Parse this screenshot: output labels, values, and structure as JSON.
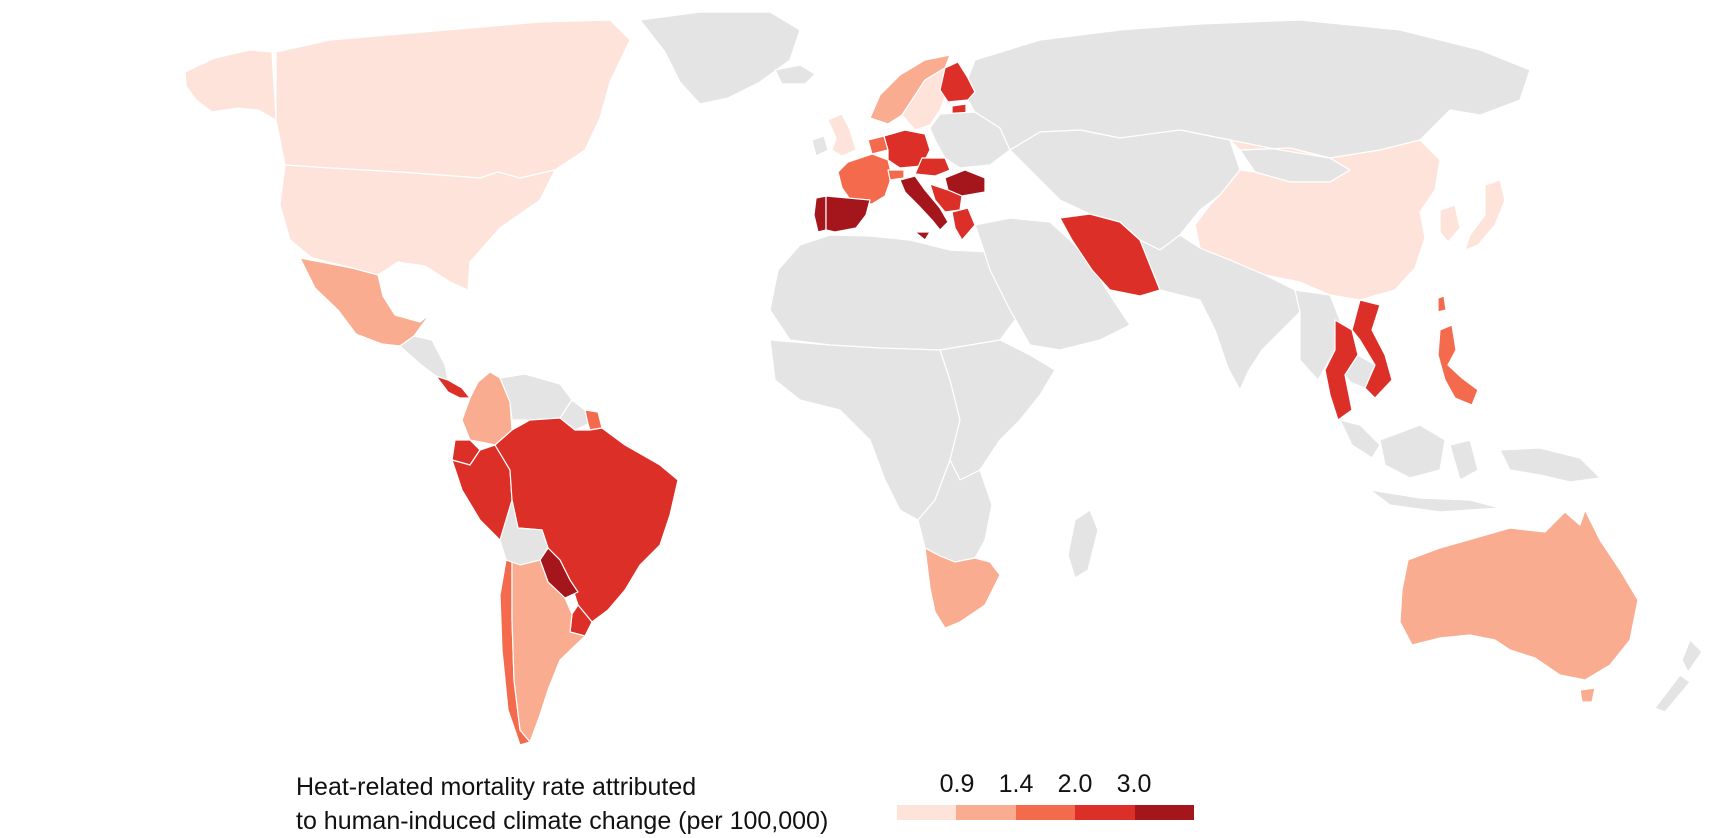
{
  "colors": {
    "no_data": "#e4e4e4",
    "bins": [
      "#fde3da",
      "#f9ac8f",
      "#f46a4d",
      "#dc2f28",
      "#a5151c"
    ]
  },
  "legend": {
    "title_line1": "Heat-related mortality rate attributed",
    "title_line2": "to human-induced climate change (per 100,000)",
    "ticks": [
      "0.9",
      "1.4",
      "2.0",
      "3.0"
    ]
  },
  "regions": [
    {
      "name": "canada",
      "level": 0
    },
    {
      "name": "usa",
      "level": 0
    },
    {
      "name": "alaska",
      "level": 0
    },
    {
      "name": "greenland",
      "level": null
    },
    {
      "name": "mexico",
      "level": 1
    },
    {
      "name": "central-america",
      "level": null
    },
    {
      "name": "costa-rica-panama",
      "level": 3
    },
    {
      "name": "colombia",
      "level": 1
    },
    {
      "name": "venezuela",
      "level": null
    },
    {
      "name": "guyana-suriname",
      "level": null
    },
    {
      "name": "french-guiana",
      "level": 2
    },
    {
      "name": "ecuador",
      "level": 3
    },
    {
      "name": "peru",
      "level": 3
    },
    {
      "name": "brazil",
      "level": 3
    },
    {
      "name": "bolivia",
      "level": null
    },
    {
      "name": "paraguay",
      "level": 4
    },
    {
      "name": "uruguay",
      "level": 3
    },
    {
      "name": "chile",
      "level": 2
    },
    {
      "name": "argentina",
      "level": 1
    },
    {
      "name": "iceland",
      "level": null
    },
    {
      "name": "uk",
      "level": 0
    },
    {
      "name": "ireland",
      "level": null
    },
    {
      "name": "norway",
      "level": 1
    },
    {
      "name": "sweden",
      "level": 0
    },
    {
      "name": "finland",
      "level": 3
    },
    {
      "name": "estonia",
      "level": 3
    },
    {
      "name": "baltic-eastern-europe",
      "level": null
    },
    {
      "name": "russia",
      "level": null
    },
    {
      "name": "germany",
      "level": 3
    },
    {
      "name": "netherlands-belgium",
      "level": 2
    },
    {
      "name": "france",
      "level": 2
    },
    {
      "name": "switzerland",
      "level": 2
    },
    {
      "name": "spain",
      "level": 4
    },
    {
      "name": "portugal",
      "level": 4
    },
    {
      "name": "italy",
      "level": 4
    },
    {
      "name": "czechia-austria",
      "level": 3
    },
    {
      "name": "romania",
      "level": 4
    },
    {
      "name": "serbia-balkans",
      "level": 3
    },
    {
      "name": "greece",
      "level": 3
    },
    {
      "name": "north-africa",
      "level": null
    },
    {
      "name": "west-central-africa",
      "level": null
    },
    {
      "name": "east-africa",
      "level": null
    },
    {
      "name": "southern-africa",
      "level": null
    },
    {
      "name": "south-africa",
      "level": 1
    },
    {
      "name": "madagascar",
      "level": null
    },
    {
      "name": "middle-east",
      "level": null
    },
    {
      "name": "iran",
      "level": 3
    },
    {
      "name": "central-asia",
      "level": null
    },
    {
      "name": "india-south-asia",
      "level": null
    },
    {
      "name": "mongolia",
      "level": null
    },
    {
      "name": "china",
      "level": 0
    },
    {
      "name": "korea",
      "level": 0
    },
    {
      "name": "japan",
      "level": 0
    },
    {
      "name": "taiwan",
      "level": 2
    },
    {
      "name": "myanmar-laos",
      "level": null
    },
    {
      "name": "thailand",
      "level": 3
    },
    {
      "name": "vietnam",
      "level": 3
    },
    {
      "name": "cambodia",
      "level": null
    },
    {
      "name": "philippines",
      "level": 2
    },
    {
      "name": "malaysia-indonesia",
      "level": null
    },
    {
      "name": "papua",
      "level": null
    },
    {
      "name": "australia",
      "level": 1
    },
    {
      "name": "tasmania",
      "level": 1
    },
    {
      "name": "new-zealand",
      "level": null
    }
  ]
}
